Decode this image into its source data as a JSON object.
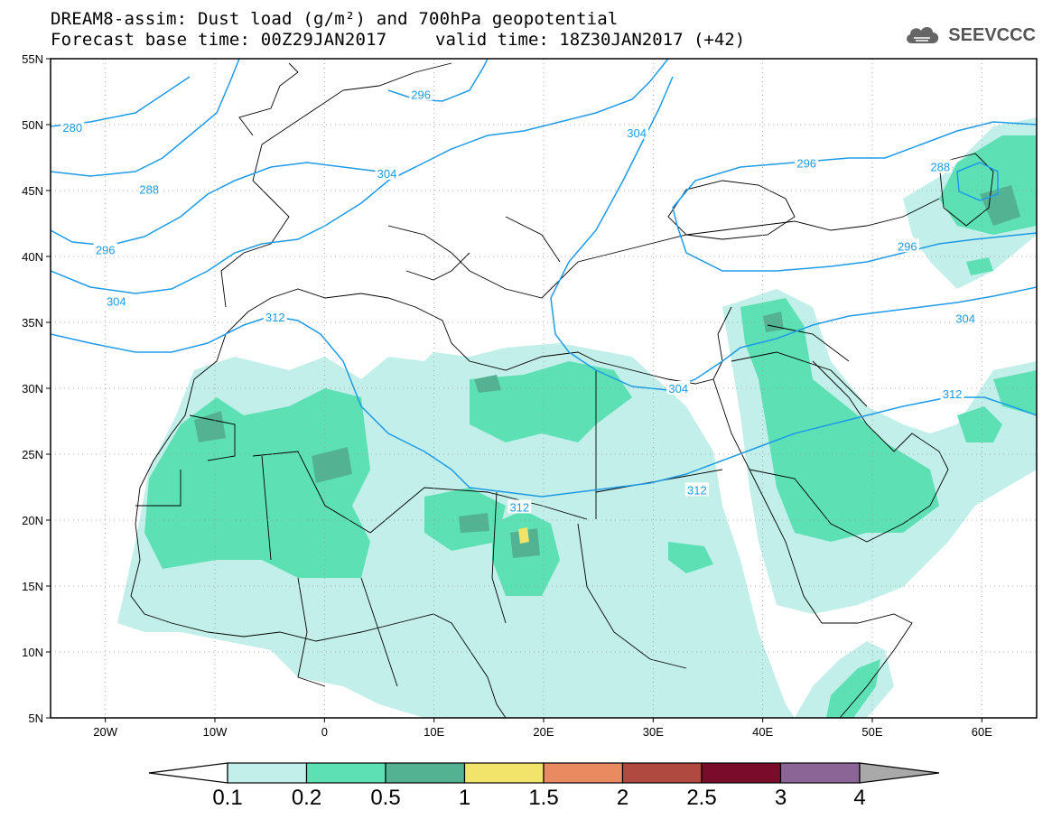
{
  "title": {
    "line1": "DREAM8-assim: Dust load (g/m²) and 700hPa geopotential",
    "line2": "Forecast base time: 00Z29JAN2017",
    "valid": "valid time: 18Z30JAN2017 (+42)"
  },
  "logo": {
    "text": "SEEVCCC",
    "icon": "cloud-icon"
  },
  "map": {
    "lon_range": [
      -25,
      65
    ],
    "lat_range": [
      5,
      55
    ],
    "lat_labels": [
      "55N",
      "50N",
      "45N",
      "40N",
      "35N",
      "30N",
      "25N",
      "20N",
      "15N",
      "10N",
      "5N"
    ],
    "lon_labels": [
      "20W",
      "10W",
      "0",
      "10E",
      "20E",
      "30E",
      "40E",
      "50E",
      "60E"
    ],
    "grid": "dotted",
    "contour_color": "#1e9be8",
    "contour_labels": [
      {
        "text": "280",
        "lon": -23,
        "lat": 49.8
      },
      {
        "text": "288",
        "lon": -16,
        "lat": 45.1
      },
      {
        "text": "296",
        "lon": -20,
        "lat": 40.5
      },
      {
        "text": "304",
        "lon": -19,
        "lat": 36.6
      },
      {
        "text": "312",
        "lon": -4.5,
        "lat": 35.4
      },
      {
        "text": "296",
        "lon": 8.8,
        "lat": 52.3
      },
      {
        "text": "304",
        "lon": 5.7,
        "lat": 46.3
      },
      {
        "text": "304",
        "lon": 28.5,
        "lat": 49.4
      },
      {
        "text": "296",
        "lon": 44,
        "lat": 47.1
      },
      {
        "text": "288",
        "lon": 56.2,
        "lat": 46.8
      },
      {
        "text": "296",
        "lon": 53.2,
        "lat": 40.8
      },
      {
        "text": "304",
        "lon": 58.5,
        "lat": 35.3
      },
      {
        "text": "304",
        "lon": 32.3,
        "lat": 30.0
      },
      {
        "text": "312",
        "lon": 57.3,
        "lat": 29.6
      },
      {
        "text": "312",
        "lon": 34,
        "lat": 22.3
      },
      {
        "text": "312",
        "lon": 17.8,
        "lat": 21.0
      }
    ]
  },
  "colorbar": {
    "labels": [
      "0.1",
      "0.2",
      "0.5",
      "1",
      "1.5",
      "2",
      "2.5",
      "3",
      "4"
    ],
    "colors": [
      "#ffffff",
      "#c2efe9",
      "#5ee0b5",
      "#52b292",
      "#f2e36a",
      "#e98a60",
      "#b04a3e",
      "#7b0b2a",
      "#8b6596",
      "#a9a9a9"
    ]
  }
}
